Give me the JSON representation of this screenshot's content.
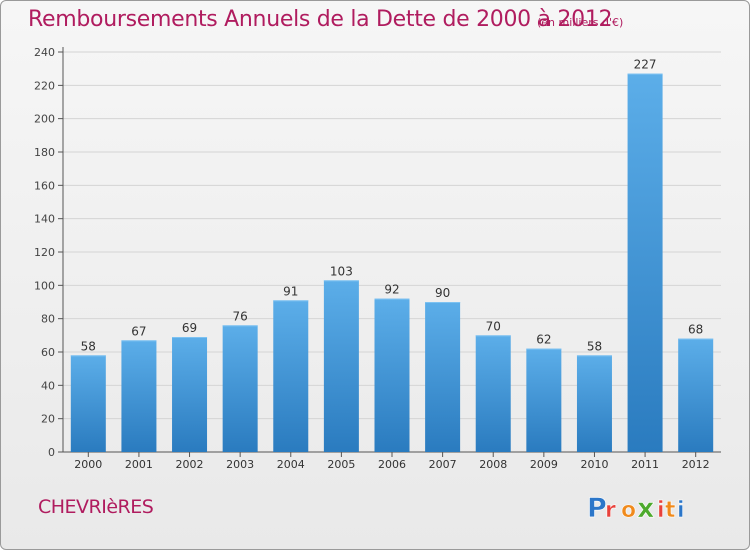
{
  "title": "Remboursements Annuels de la Dette de 2000 à 2012",
  "unit": "(en milliers d'€)",
  "commune": "CHEVRIèRES",
  "logo": {
    "brand": "Proxiti",
    "colors": [
      "#2b76c9",
      "#e8413b",
      "#f08a1c",
      "#4daa2c",
      "#e8413b",
      "#f08a1c",
      "#2b76c9"
    ]
  },
  "colors": {
    "accent": "#b01c5f",
    "bar_top": "#5caee9",
    "bar_bottom": "#2a7bbf"
  },
  "chart_data": {
    "type": "bar",
    "title": "Remboursements Annuels de la Dette de 2000 à 2012",
    "xlabel": "",
    "ylabel": "",
    "categories": [
      "2000",
      "2001",
      "2002",
      "2003",
      "2004",
      "2005",
      "2006",
      "2007",
      "2008",
      "2009",
      "2010",
      "2011",
      "2012"
    ],
    "values": [
      58,
      67,
      69,
      76,
      91,
      103,
      92,
      90,
      70,
      62,
      58,
      227,
      68
    ],
    "ylim": [
      0,
      240
    ],
    "yticks": [
      0,
      20,
      40,
      60,
      80,
      100,
      120,
      140,
      160,
      180,
      200,
      220,
      240
    ],
    "grid": true,
    "legend": "none"
  }
}
